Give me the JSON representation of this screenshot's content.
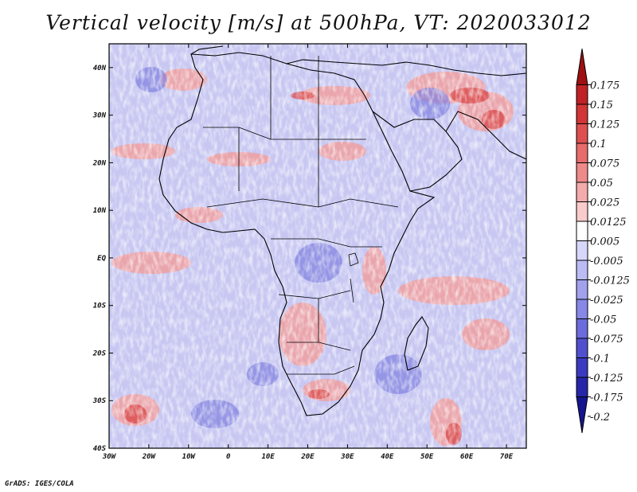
{
  "title": "Vertical velocity [m/s] at 500hPa, VT: 2020033012",
  "credit": "GrADS: IGES/COLA",
  "map": {
    "lon_range": [
      -30,
      75
    ],
    "lat_range": [
      -40,
      45
    ],
    "lon_ticks": [
      {
        "value": -30,
        "label": "30W"
      },
      {
        "value": -20,
        "label": "20W"
      },
      {
        "value": -10,
        "label": "10W"
      },
      {
        "value": 0,
        "label": "0"
      },
      {
        "value": 10,
        "label": "10E"
      },
      {
        "value": 20,
        "label": "20E"
      },
      {
        "value": 30,
        "label": "30E"
      },
      {
        "value": 40,
        "label": "40E"
      },
      {
        "value": 50,
        "label": "50E"
      },
      {
        "value": 60,
        "label": "60E"
      },
      {
        "value": 70,
        "label": "70E"
      }
    ],
    "lat_ticks": [
      {
        "value": 40,
        "label": "40N"
      },
      {
        "value": 30,
        "label": "30N"
      },
      {
        "value": 20,
        "label": "20N"
      },
      {
        "value": 10,
        "label": "10N"
      },
      {
        "value": 0,
        "label": "EQ"
      },
      {
        "value": -10,
        "label": "10S"
      },
      {
        "value": -20,
        "label": "20S"
      },
      {
        "value": -30,
        "label": "30S"
      },
      {
        "value": -40,
        "label": "40S"
      }
    ]
  },
  "colorbar": {
    "colors": [
      "#9e1012",
      "#c02126",
      "#d23535",
      "#de5050",
      "#e86c6c",
      "#ef8a8a",
      "#f5abab",
      "#facbcb",
      "#ffffff",
      "#d7d7fb",
      "#bcbcf5",
      "#a1a1ee",
      "#8787e8",
      "#6b6bdc",
      "#5050cf",
      "#3a3ac0",
      "#2626a8",
      "#151590"
    ],
    "labels": [
      "0.175",
      "0.15",
      "0.125",
      "0.1",
      "0.075",
      "0.05",
      "0.025",
      "0.0125",
      "0.005",
      "-0.005",
      "-0.0125",
      "-0.025",
      "-0.05",
      "-0.075",
      "-0.1",
      "-0.125",
      "-0.175",
      "-0.2"
    ]
  }
}
